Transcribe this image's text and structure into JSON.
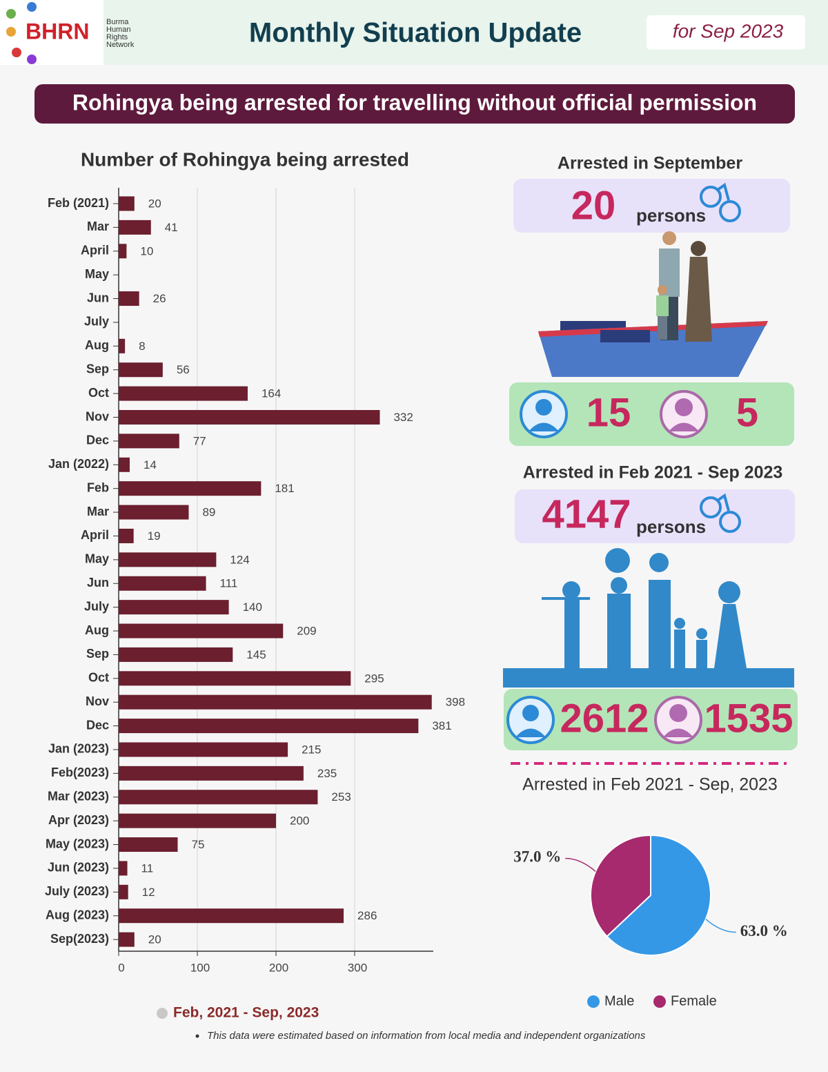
{
  "header": {
    "logo": "BHRN",
    "org_lines": [
      "Burma",
      "Human",
      "Rights",
      "Network"
    ],
    "title": "Monthly Situation Update",
    "period": "for Sep 2023"
  },
  "banner": "Rohingya being arrested for travelling without official permission",
  "chart_data": [
    {
      "type": "bar",
      "orientation": "horizontal",
      "title": "Number of Rohingya being arrested",
      "color": "#6b1f2f",
      "categories": [
        "Feb (2021)",
        "Mar",
        "April",
        "May",
        "Jun",
        "July",
        "Aug",
        "Sep",
        "Oct",
        "Nov",
        "Dec",
        "Jan (2022)",
        "Feb",
        "Mar",
        "April",
        "May",
        "Jun",
        "July",
        "Aug",
        "Sep",
        "Oct",
        "Nov",
        "Dec",
        "Jan (2023)",
        "Feb(2023)",
        "Mar (2023)",
        "Apr (2023)",
        "May (2023)",
        "Jun (2023)",
        "July (2023)",
        "Aug (2023)",
        "Sep(2023)"
      ],
      "values": [
        20,
        41,
        10,
        null,
        26,
        null,
        8,
        56,
        164,
        332,
        77,
        14,
        181,
        89,
        19,
        124,
        111,
        140,
        209,
        145,
        295,
        398,
        381,
        215,
        235,
        253,
        200,
        75,
        11,
        12,
        286,
        20
      ],
      "xlim": [
        0,
        400
      ],
      "xticks": [
        0,
        100,
        200,
        300
      ],
      "grid": true,
      "legend": "Feb, 2021 - Sep, 2023",
      "legend_color": "#c8c8c8"
    },
    {
      "type": "pie",
      "title": "Arrested in Feb 2021 - Sep, 2023",
      "categories": [
        "Male",
        "Female"
      ],
      "values": [
        63.0,
        37.0
      ],
      "value_labels": [
        "63.0 %",
        "37.0 %"
      ],
      "colors": [
        "#3598e6",
        "#a7296e"
      ]
    }
  ],
  "stats": [
    {
      "title": "Arrested in September",
      "total": "20",
      "unit": "persons",
      "male": "15",
      "female": "5"
    },
    {
      "title": "Arrested in Feb 2021 - Sep 2023",
      "total": "4147",
      "unit": "persons",
      "male": "2612",
      "female": "1535"
    }
  ],
  "footnote": "This data were estimated based on information from local media and independent organizations"
}
